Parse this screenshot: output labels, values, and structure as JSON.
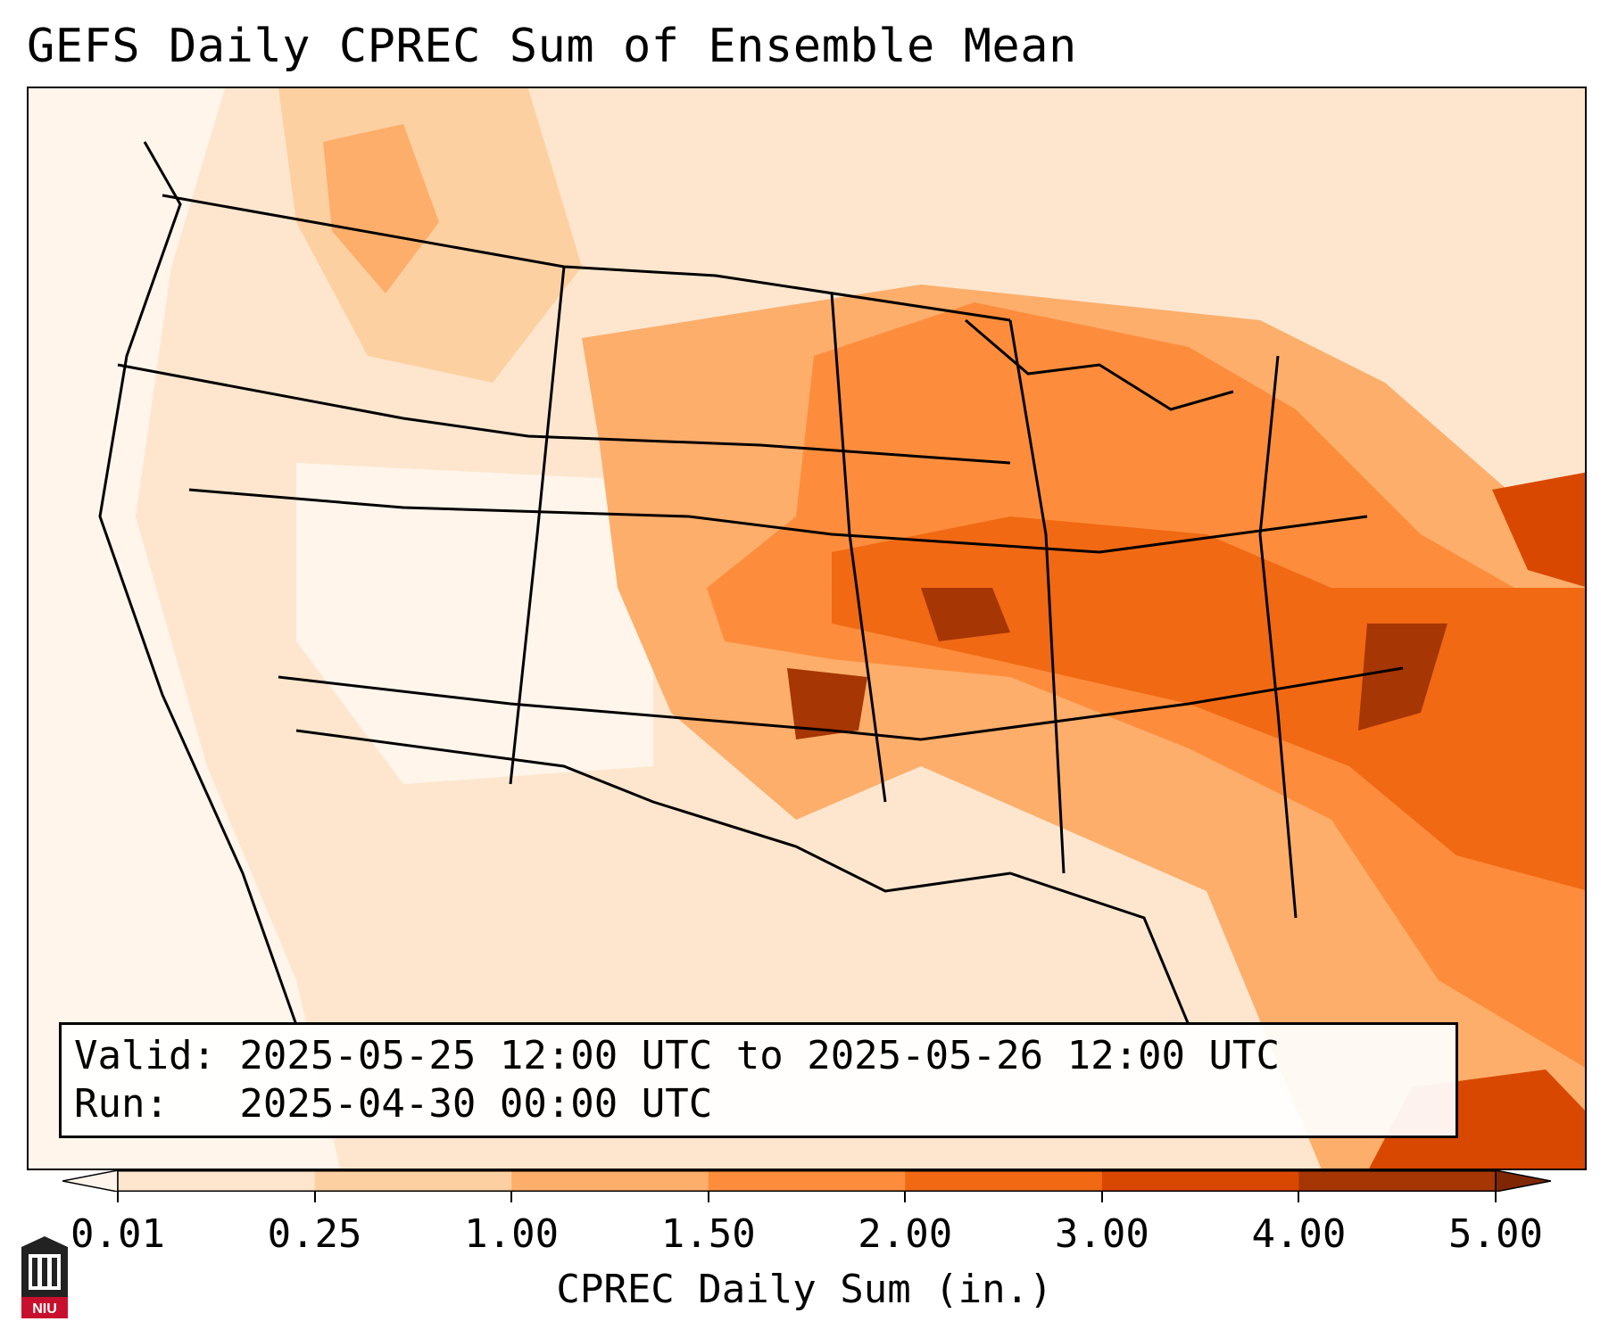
{
  "title": "GEFS Daily CPREC Sum of Ensemble Mean",
  "valid_box": {
    "valid_line": "Valid: 2025-05-25 12:00 UTC to 2025-05-26 12:00 UTC",
    "run_line": "Run:   2025-04-30 00:00 UTC"
  },
  "colorbar": {
    "label": "CPREC Daily Sum (in.)",
    "ticks": [
      "0.01",
      "0.25",
      "1.00",
      "1.50",
      "2.00",
      "3.00",
      "4.00",
      "5.00"
    ],
    "colors": [
      "#fff5eb",
      "#fee6ce",
      "#fdd0a2",
      "#fdae6b",
      "#fd8d3c",
      "#f16913",
      "#d94801",
      "#a63603",
      "#7f2704"
    ]
  },
  "map": {
    "projection": "conus",
    "field": "CPREC daily sum"
  },
  "logo": {
    "icon": "niu-logo-icon",
    "text": "NIU"
  }
}
